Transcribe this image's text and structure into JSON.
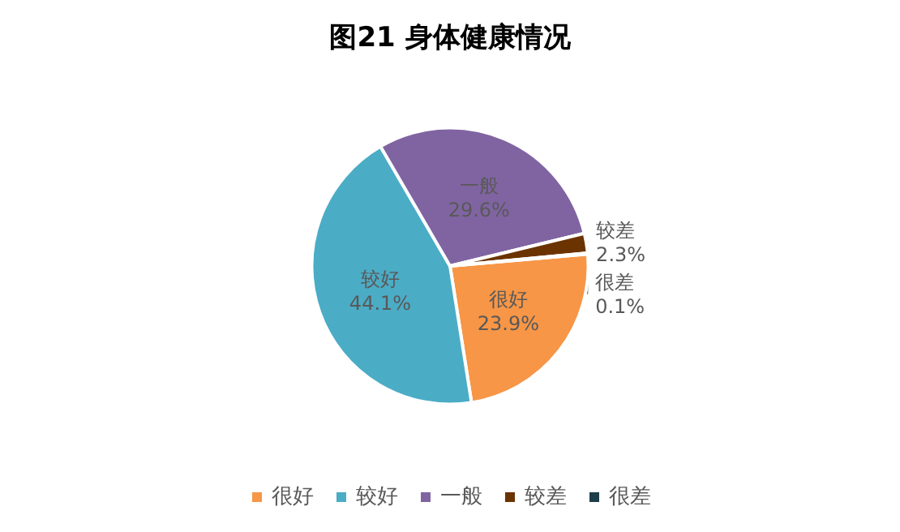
{
  "chart_data": {
    "type": "pie",
    "title": "图21 身体健康情况",
    "categories": [
      "很好",
      "较好",
      "一般",
      "较差",
      "很差"
    ],
    "values": [
      23.9,
      44.1,
      29.6,
      2.3,
      0.1
    ],
    "value_labels": [
      "23.9%",
      "44.1%",
      "29.6%",
      "2.3%",
      "0.1%"
    ],
    "colors": [
      "#f79646",
      "#4bacc6",
      "#8064a2",
      "#6b3300",
      "#1c3f4a"
    ],
    "legend": "bottom"
  }
}
